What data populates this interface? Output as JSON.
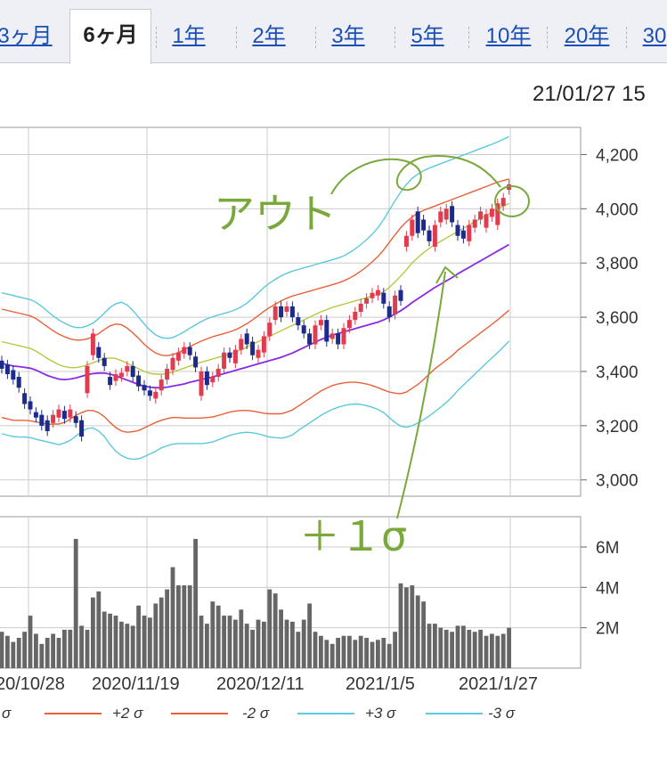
{
  "tabs": [
    {
      "label": "3ヶ月",
      "active": false
    },
    {
      "label": "6ヶ月",
      "active": true
    },
    {
      "label": "1年",
      "active": false
    },
    {
      "label": "2年",
      "active": false
    },
    {
      "label": "3年",
      "active": false
    },
    {
      "label": "5年",
      "active": false
    },
    {
      "label": "10年",
      "active": false
    },
    {
      "label": "20年",
      "active": false
    },
    {
      "label": "30",
      "active": false
    }
  ],
  "timestamp": "21/01/27 15",
  "annotations": {
    "out_label": "アウト",
    "sigma_label": "＋１σ",
    "ink_color": "#7aa83a"
  },
  "legend": {
    "items": [
      {
        "label": "σ",
        "color": "#b8c840"
      },
      {
        "label": "+2 σ",
        "color": "#e8603a"
      },
      {
        "label": "-2 σ",
        "color": "#e8603a"
      },
      {
        "label": "+3 σ",
        "color": "#5cc8dc"
      },
      {
        "label": "-3 σ",
        "color": "#5cc8dc"
      }
    ]
  },
  "chart_data": {
    "type": "candlestick",
    "price_axis": {
      "ticks": [
        "4,200",
        "4,000",
        "3,800",
        "3,600",
        "3,400",
        "3,200",
        "3,000"
      ],
      "range": [
        2940,
        4300
      ]
    },
    "volume_axis": {
      "ticks": [
        "6M",
        "4M",
        "2M"
      ],
      "range": [
        0,
        7.5
      ]
    },
    "x_labels": [
      "20/10/28",
      "2020/11/19",
      "2020/12/11",
      "2021/1/5",
      "2021/1/27"
    ],
    "colors": {
      "up": "#e03c50",
      "down": "#1c2a8c",
      "ma": "#8a2be2",
      "s1": "#b8c840",
      "s2": "#e8603a",
      "s3": "#5cc8dc",
      "volume": "#666666",
      "grid": "#cccccc"
    },
    "bands": {
      "ma": [
        3430,
        3425,
        3420,
        3418,
        3415,
        3412,
        3405,
        3395,
        3385,
        3378,
        3372,
        3370,
        3372,
        3376,
        3382,
        3388,
        3392,
        3394,
        3394,
        3390,
        3384,
        3376,
        3368,
        3360,
        3352,
        3346,
        3342,
        3340,
        3340,
        3342,
        3346,
        3350,
        3354,
        3360,
        3365,
        3370,
        3375,
        3380,
        3386,
        3392,
        3398,
        3404,
        3410,
        3416,
        3422,
        3428,
        3434,
        3440,
        3446,
        3452,
        3460,
        3468,
        3478,
        3488,
        3498,
        3508,
        3518,
        3526,
        3534,
        3540,
        3546,
        3552,
        3558,
        3564,
        3570,
        3576,
        3582,
        3590,
        3600,
        3612,
        3624,
        3638,
        3654,
        3668,
        3682,
        3696,
        3710,
        3722,
        3734,
        3746,
        3760,
        3772,
        3784,
        3796,
        3808,
        3820,
        3832,
        3844,
        3856,
        3868
      ],
      "s1": [
        3510,
        3505,
        3500,
        3495,
        3490,
        3485,
        3475,
        3462,
        3448,
        3436,
        3425,
        3418,
        3414,
        3414,
        3418,
        3424,
        3432,
        3440,
        3448,
        3450,
        3448,
        3440,
        3430,
        3420,
        3410,
        3400,
        3393,
        3390,
        3390,
        3392,
        3398,
        3405,
        3412,
        3420,
        3427,
        3434,
        3440,
        3446,
        3452,
        3458,
        3464,
        3472,
        3480,
        3490,
        3500,
        3510,
        3520,
        3530,
        3540,
        3550,
        3560,
        3570,
        3580,
        3590,
        3600,
        3610,
        3620,
        3628,
        3636,
        3642,
        3648,
        3654,
        3660,
        3666,
        3672,
        3678,
        3684,
        3694,
        3710,
        3730,
        3752,
        3775,
        3800,
        3820,
        3838,
        3854,
        3868,
        3880,
        3892,
        3904,
        3916,
        3928,
        3940,
        3952,
        3964,
        3976,
        3988,
        4000,
        4010,
        4020
      ],
      "s2": [
        3630,
        3625,
        3620,
        3615,
        3610,
        3605,
        3595,
        3580,
        3565,
        3550,
        3538,
        3528,
        3520,
        3516,
        3516,
        3520,
        3528,
        3540,
        3555,
        3568,
        3575,
        3572,
        3560,
        3542,
        3522,
        3500,
        3482,
        3468,
        3460,
        3458,
        3462,
        3470,
        3480,
        3492,
        3502,
        3512,
        3520,
        3528,
        3534,
        3540,
        3546,
        3554,
        3564,
        3576,
        3590,
        3606,
        3622,
        3636,
        3648,
        3660,
        3670,
        3678,
        3684,
        3690,
        3696,
        3702,
        3708,
        3714,
        3720,
        3726,
        3734,
        3744,
        3756,
        3770,
        3786,
        3804,
        3824,
        3848,
        3876,
        3904,
        3930,
        3952,
        3970,
        3984,
        3994,
        4002,
        4010,
        4018,
        4026,
        4034,
        4042,
        4050,
        4058,
        4066,
        4074,
        4082,
        4090,
        4098,
        4104,
        4110
      ],
      "s2l": [
        3230,
        3225,
        3220,
        3220,
        3220,
        3218,
        3214,
        3210,
        3205,
        3206,
        3206,
        3212,
        3224,
        3238,
        3248,
        3256,
        3256,
        3248,
        3233,
        3212,
        3193,
        3180,
        3176,
        3178,
        3182,
        3192,
        3202,
        3212,
        3220,
        3226,
        3230,
        3230,
        3228,
        3228,
        3228,
        3228,
        3230,
        3232,
        3238,
        3244,
        3250,
        3254,
        3256,
        3256,
        3254,
        3250,
        3246,
        3244,
        3244,
        3244,
        3250,
        3258,
        3272,
        3286,
        3300,
        3314,
        3328,
        3338,
        3348,
        3354,
        3358,
        3360,
        3360,
        3358,
        3354,
        3348,
        3340,
        3332,
        3324,
        3320,
        3318,
        3324,
        3338,
        3352,
        3370,
        3390,
        3410,
        3426,
        3442,
        3458,
        3478,
        3494,
        3510,
        3526,
        3542,
        3558,
        3574,
        3590,
        3608,
        3626
      ],
      "s3": [
        3690,
        3685,
        3680,
        3675,
        3670,
        3665,
        3655,
        3640,
        3622,
        3605,
        3590,
        3578,
        3568,
        3562,
        3562,
        3568,
        3578,
        3595,
        3615,
        3636,
        3650,
        3655,
        3645,
        3625,
        3600,
        3575,
        3552,
        3535,
        3525,
        3522,
        3525,
        3535,
        3546,
        3560,
        3572,
        3584,
        3594,
        3602,
        3608,
        3614,
        3620,
        3628,
        3638,
        3652,
        3670,
        3690,
        3710,
        3726,
        3740,
        3752,
        3762,
        3770,
        3776,
        3782,
        3788,
        3794,
        3800,
        3806,
        3812,
        3818,
        3826,
        3838,
        3852,
        3868,
        3886,
        3906,
        3930,
        3960,
        3995,
        4030,
        4062,
        4090,
        4112,
        4128,
        4140,
        4150,
        4158,
        4166,
        4174,
        4182,
        4190,
        4198,
        4206,
        4214,
        4222,
        4230,
        4238,
        4246,
        4256,
        4266
      ],
      "s3l": [
        3170,
        3165,
        3160,
        3158,
        3158,
        3156,
        3150,
        3145,
        3140,
        3135,
        3130,
        3136,
        3146,
        3162,
        3178,
        3190,
        3192,
        3180,
        3160,
        3130,
        3106,
        3090,
        3080,
        3076,
        3078,
        3086,
        3096,
        3106,
        3118,
        3126,
        3132,
        3134,
        3134,
        3134,
        3134,
        3134,
        3136,
        3140,
        3148,
        3156,
        3164,
        3170,
        3174,
        3176,
        3174,
        3170,
        3164,
        3158,
        3156,
        3154,
        3158,
        3166,
        3182,
        3196,
        3210,
        3224,
        3238,
        3250,
        3260,
        3268,
        3274,
        3278,
        3280,
        3278,
        3274,
        3268,
        3260,
        3248,
        3230,
        3212,
        3198,
        3194,
        3200,
        3210,
        3222,
        3236,
        3252,
        3268,
        3286,
        3306,
        3330,
        3350,
        3370,
        3390,
        3410,
        3430,
        3450,
        3470,
        3490,
        3512
      ]
    },
    "candles": [
      {
        "o": 3440,
        "c": 3410
      },
      {
        "o": 3425,
        "c": 3390
      },
      {
        "o": 3405,
        "c": 3370
      },
      {
        "o": 3380,
        "c": 3340
      },
      {
        "o": 3320,
        "c": 3280
      },
      {
        "o": 3290,
        "c": 3260
      },
      {
        "o": 3250,
        "c": 3230
      },
      {
        "o": 3240,
        "c": 3200
      },
      {
        "o": 3220,
        "c": 3180
      },
      {
        "o": 3210,
        "c": 3240
      },
      {
        "o": 3230,
        "c": 3260
      },
      {
        "o": 3255,
        "c": 3225
      },
      {
        "o": 3230,
        "c": 3260
      },
      {
        "o": 3235,
        "c": 3210
      },
      {
        "o": 3220,
        "c": 3160
      },
      {
        "o": 3320,
        "c": 3420
      },
      {
        "o": 3460,
        "c": 3540
      },
      {
        "o": 3490,
        "c": 3450
      },
      {
        "o": 3450,
        "c": 3420
      },
      {
        "o": 3380,
        "c": 3350
      },
      {
        "o": 3365,
        "c": 3390
      },
      {
        "o": 3380,
        "c": 3395
      },
      {
        "o": 3400,
        "c": 3420
      },
      {
        "o": 3420,
        "c": 3380
      },
      {
        "o": 3385,
        "c": 3345
      },
      {
        "o": 3350,
        "c": 3330
      },
      {
        "o": 3330,
        "c": 3310
      },
      {
        "o": 3300,
        "c": 3325
      },
      {
        "o": 3330,
        "c": 3370
      },
      {
        "o": 3370,
        "c": 3410
      },
      {
        "o": 3405,
        "c": 3450
      },
      {
        "o": 3440,
        "c": 3470
      },
      {
        "o": 3465,
        "c": 3490
      },
      {
        "o": 3490,
        "c": 3460
      },
      {
        "o": 3455,
        "c": 3415
      },
      {
        "o": 3310,
        "c": 3400
      },
      {
        "o": 3400,
        "c": 3350
      },
      {
        "o": 3360,
        "c": 3380
      },
      {
        "o": 3380,
        "c": 3410
      },
      {
        "o": 3410,
        "c": 3470
      },
      {
        "o": 3470,
        "c": 3450
      },
      {
        "o": 3430,
        "c": 3480
      },
      {
        "o": 3480,
        "c": 3520
      },
      {
        "o": 3540,
        "c": 3500
      },
      {
        "o": 3510,
        "c": 3460
      },
      {
        "o": 3450,
        "c": 3480
      },
      {
        "o": 3470,
        "c": 3530
      },
      {
        "o": 3530,
        "c": 3580
      },
      {
        "o": 3590,
        "c": 3640
      },
      {
        "o": 3640,
        "c": 3600
      },
      {
        "o": 3620,
        "c": 3640
      },
      {
        "o": 3640,
        "c": 3600
      },
      {
        "o": 3600,
        "c": 3570
      },
      {
        "o": 3570,
        "c": 3540
      },
      {
        "o": 3540,
        "c": 3500
      },
      {
        "o": 3500,
        "c": 3570
      },
      {
        "o": 3570,
        "c": 3590
      },
      {
        "o": 3590,
        "c": 3510
      },
      {
        "o": 3520,
        "c": 3540
      },
      {
        "o": 3540,
        "c": 3500
      },
      {
        "o": 3500,
        "c": 3560
      },
      {
        "o": 3560,
        "c": 3590
      },
      {
        "o": 3590,
        "c": 3620
      },
      {
        "o": 3620,
        "c": 3650
      },
      {
        "o": 3650,
        "c": 3670
      },
      {
        "o": 3670,
        "c": 3690
      },
      {
        "o": 3680,
        "c": 3700
      },
      {
        "o": 3690,
        "c": 3650
      },
      {
        "o": 3640,
        "c": 3600
      },
      {
        "o": 3610,
        "c": 3680
      },
      {
        "o": 3700,
        "c": 3660
      },
      {
        "o": 3860,
        "c": 3900
      },
      {
        "o": 3900,
        "c": 3960
      },
      {
        "o": 3990,
        "c": 3910
      },
      {
        "o": 3960,
        "c": 3920
      },
      {
        "o": 3920,
        "c": 3880
      },
      {
        "o": 3860,
        "c": 3940
      },
      {
        "o": 3950,
        "c": 3990
      },
      {
        "o": 3960,
        "c": 4000
      },
      {
        "o": 4010,
        "c": 3950
      },
      {
        "o": 3940,
        "c": 3900
      },
      {
        "o": 3920,
        "c": 3890
      },
      {
        "o": 3880,
        "c": 3940
      },
      {
        "o": 3930,
        "c": 3960
      },
      {
        "o": 3960,
        "c": 3990
      },
      {
        "o": 3930,
        "c": 3980
      },
      {
        "o": 3970,
        "c": 4000
      },
      {
        "o": 3940,
        "c": 4020
      },
      {
        "o": 4010,
        "c": 4040
      },
      {
        "o": 4070,
        "c": 4090
      }
    ],
    "volume": [
      1.8,
      1.6,
      1.3,
      1.5,
      1.8,
      2.6,
      1.7,
      1.2,
      1.5,
      1.7,
      1.5,
      1.9,
      1.9,
      6.4,
      2.1,
      1.9,
      3.5,
      3.8,
      2.8,
      2.7,
      2.6,
      2.3,
      2.2,
      2.1,
      3.1,
      2.6,
      2.5,
      3.2,
      3.5,
      3.9,
      5.0,
      4.1,
      4.1,
      4.1,
      6.4,
      2.6,
      2.2,
      3.3,
      3.1,
      2.6,
      2.6,
      2.4,
      2.9,
      2.2,
      1.9,
      2.4,
      2.3,
      3.9,
      3.7,
      2.9,
      2.4,
      2.3,
      1.8,
      2.4,
      3.2,
      1.8,
      1.6,
      1.4,
      1.2,
      1.5,
      1.6,
      1.6,
      1.4,
      1.6,
      1.5,
      1.3,
      1.4,
      1.5,
      1.2,
      1.8,
      4.2,
      4.0,
      4.1,
      3.6,
      3.3,
      2.2,
      2.2,
      2.0,
      1.9,
      1.8,
      2.1,
      2.1,
      1.9,
      1.8,
      1.9,
      1.6,
      1.7,
      1.6,
      1.7,
      2.0
    ]
  }
}
